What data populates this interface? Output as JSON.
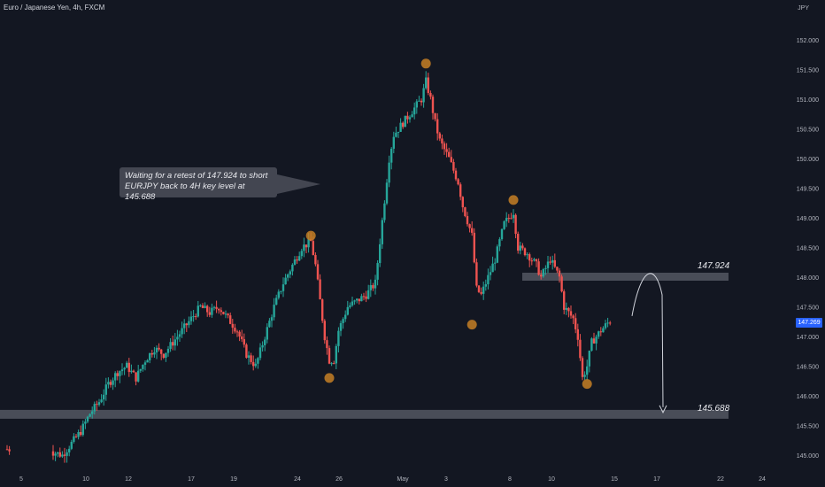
{
  "header": {
    "title": "Euro / Japanese Yen, 4h, FXCM",
    "currency": "JPY"
  },
  "annotation": {
    "line1": "Waiting for a retest of 147.924 to short",
    "line2": "EURJPY back to 4H key level at 145.688"
  },
  "levels": [
    {
      "label": "147.924",
      "price": 147.924
    },
    {
      "label": "145.688",
      "price": 145.688
    }
  ],
  "last_price": {
    "label": "147.269",
    "value": 147.269
  },
  "colors": {
    "up": "#26a69a",
    "down": "#ef5350",
    "zone": "#50535e",
    "marker": "#c67f25",
    "price_tag": "#2962ff",
    "background": "#131722"
  },
  "chart_data": {
    "type": "candlestick",
    "title": "Euro / Japanese Yen, 4h, FXCM",
    "ylabel": "JPY",
    "ylim": [
      144.9,
      152.3
    ],
    "y_ticks": [
      "152.000",
      "151.500",
      "151.000",
      "150.500",
      "150.000",
      "149.500",
      "149.000",
      "148.500",
      "148.000",
      "147.500",
      "147.000",
      "146.500",
      "146.000",
      "145.500",
      "145.000"
    ],
    "x_ticks": [
      "5",
      "10",
      "12",
      "17",
      "19",
      "24",
      "26",
      "May",
      "3",
      "8",
      "10",
      "15",
      "17",
      "22",
      "24"
    ],
    "close_path": [
      [
        0,
        145.1
      ],
      [
        8,
        145.1
      ],
      [
        12,
        145.0
      ],
      [
        14,
        145.2
      ],
      [
        16,
        145.4
      ],
      [
        18,
        145.7
      ],
      [
        20,
        145.9
      ],
      [
        22,
        146.2
      ],
      [
        24,
        146.4
      ],
      [
        26,
        146.5
      ],
      [
        28,
        146.3
      ],
      [
        30,
        146.6
      ],
      [
        32,
        146.8
      ],
      [
        34,
        146.7
      ],
      [
        36,
        146.9
      ],
      [
        38,
        147.1
      ],
      [
        40,
        147.3
      ],
      [
        42,
        147.5
      ],
      [
        44,
        147.4
      ],
      [
        46,
        147.5
      ],
      [
        48,
        147.3
      ],
      [
        50,
        147.1
      ],
      [
        52,
        146.7
      ],
      [
        54,
        146.5
      ],
      [
        56,
        147.0
      ],
      [
        58,
        147.5
      ],
      [
        60,
        147.9
      ],
      [
        62,
        148.2
      ],
      [
        64,
        148.5
      ],
      [
        66,
        148.6
      ],
      [
        67,
        148.2
      ],
      [
        68,
        147.6
      ],
      [
        69,
        147.0
      ],
      [
        70,
        146.6
      ],
      [
        71,
        146.6
      ],
      [
        72,
        147.1
      ],
      [
        74,
        147.5
      ],
      [
        76,
        147.6
      ],
      [
        78,
        147.7
      ],
      [
        80,
        147.9
      ],
      [
        81,
        148.6
      ],
      [
        82,
        149.3
      ],
      [
        83,
        150.0
      ],
      [
        84,
        150.4
      ],
      [
        86,
        150.6
      ],
      [
        88,
        150.8
      ],
      [
        90,
        151.0
      ],
      [
        91,
        151.3
      ],
      [
        92,
        151.0
      ],
      [
        93,
        150.6
      ],
      [
        94,
        150.3
      ],
      [
        96,
        150.0
      ],
      [
        98,
        149.6
      ],
      [
        99,
        149.2
      ],
      [
        101,
        148.7
      ],
      [
        102,
        147.8
      ],
      [
        103,
        147.7
      ],
      [
        104,
        147.9
      ],
      [
        106,
        148.3
      ],
      [
        108,
        148.9
      ],
      [
        110,
        149.1
      ],
      [
        111,
        148.5
      ],
      [
        113,
        148.4
      ],
      [
        115,
        148.2
      ],
      [
        116,
        148.0
      ],
      [
        118,
        148.3
      ],
      [
        120,
        148.0
      ],
      [
        121,
        147.5
      ],
      [
        123,
        147.3
      ],
      [
        124,
        147.0
      ],
      [
        125,
        146.3
      ],
      [
        126,
        146.5
      ],
      [
        127,
        146.9
      ],
      [
        129,
        147.1
      ],
      [
        131,
        147.269
      ]
    ],
    "markers": [
      {
        "i": 66,
        "price": 148.7
      },
      {
        "i": 70,
        "price": 146.3
      },
      {
        "i": 91,
        "price": 151.6
      },
      {
        "i": 101,
        "price": 147.2
      },
      {
        "i": 110,
        "price": 149.3
      },
      {
        "i": 126,
        "price": 146.2
      }
    ],
    "arrow": {
      "from": 147.3,
      "peak": 148.0,
      "to": 145.688
    }
  }
}
